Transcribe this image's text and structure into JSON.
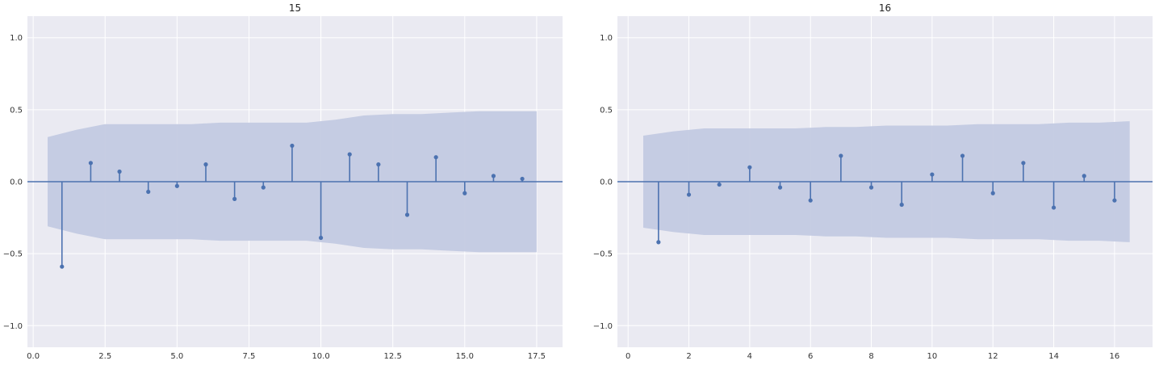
{
  "chart_data": [
    {
      "type": "stem",
      "title": "15",
      "xlabel": "",
      "ylabel": "",
      "xlim": [
        -0.2,
        18.4
      ],
      "ylim": [
        -1.15,
        1.15
      ],
      "xticks": [
        0.0,
        2.5,
        5.0,
        7.5,
        10.0,
        12.5,
        15.0,
        17.5
      ],
      "xtick_labels": [
        "0.0",
        "2.5",
        "5.0",
        "7.5",
        "10.0",
        "12.5",
        "15.0",
        "17.5"
      ],
      "yticks": [
        -1.0,
        -0.5,
        0.0,
        0.5,
        1.0
      ],
      "ytick_labels": [
        "−1.0",
        "−0.5",
        "0.0",
        "0.5",
        "1.0"
      ],
      "grid": true,
      "zero_line": true,
      "lags": [
        1,
        2,
        3,
        4,
        5,
        6,
        7,
        8,
        9,
        10,
        11,
        12,
        13,
        14,
        15,
        16,
        17
      ],
      "values": [
        -0.59,
        0.13,
        0.07,
        -0.07,
        -0.03,
        0.12,
        -0.12,
        -0.04,
        0.25,
        -0.39,
        0.19,
        0.12,
        -0.23,
        0.17,
        -0.08,
        0.04,
        0.02
      ],
      "confidence_band": {
        "x": [
          0.5,
          1.5,
          2.5,
          3.5,
          4.5,
          5.5,
          6.5,
          7.5,
          8.5,
          9.5,
          10.5,
          11.5,
          12.5,
          13.5,
          14.5,
          15.5,
          16.5,
          17.5
        ],
        "upper": [
          0.31,
          0.36,
          0.4,
          0.4,
          0.4,
          0.4,
          0.41,
          0.41,
          0.41,
          0.41,
          0.43,
          0.46,
          0.47,
          0.47,
          0.48,
          0.49,
          0.49,
          0.49
        ]
      }
    },
    {
      "type": "stem",
      "title": "16",
      "xlabel": "",
      "ylabel": "",
      "xlim": [
        -0.35,
        17.25
      ],
      "ylim": [
        -1.15,
        1.15
      ],
      "xticks": [
        0,
        2,
        4,
        6,
        8,
        10,
        12,
        14,
        16
      ],
      "xtick_labels": [
        "0",
        "2",
        "4",
        "6",
        "8",
        "10",
        "12",
        "14",
        "16"
      ],
      "yticks": [
        -1.0,
        -0.5,
        0.0,
        0.5,
        1.0
      ],
      "ytick_labels": [
        "−1.0",
        "−0.5",
        "0.0",
        "0.5",
        "1.0"
      ],
      "grid": true,
      "zero_line": true,
      "lags": [
        1,
        2,
        3,
        4,
        5,
        6,
        7,
        8,
        9,
        10,
        11,
        12,
        13,
        14,
        15,
        16
      ],
      "values": [
        -0.42,
        -0.09,
        -0.02,
        0.1,
        -0.04,
        -0.13,
        0.18,
        -0.04,
        -0.16,
        0.05,
        0.18,
        -0.08,
        0.13,
        -0.18,
        0.04,
        -0.13
      ],
      "confidence_band": {
        "x": [
          0.5,
          1.5,
          2.5,
          3.5,
          4.5,
          5.5,
          6.5,
          7.5,
          8.5,
          9.5,
          10.5,
          11.5,
          12.5,
          13.5,
          14.5,
          15.5,
          16.5
        ],
        "upper": [
          0.32,
          0.35,
          0.37,
          0.37,
          0.37,
          0.37,
          0.38,
          0.38,
          0.39,
          0.39,
          0.39,
          0.4,
          0.4,
          0.4,
          0.41,
          0.41,
          0.42
        ]
      }
    }
  ],
  "colors": {
    "plot_background": "#eaeaf2",
    "grid": "#ffffff",
    "stem": "#4c72b0",
    "band": "#c3cae1",
    "zero_line": "#4c72b0"
  }
}
